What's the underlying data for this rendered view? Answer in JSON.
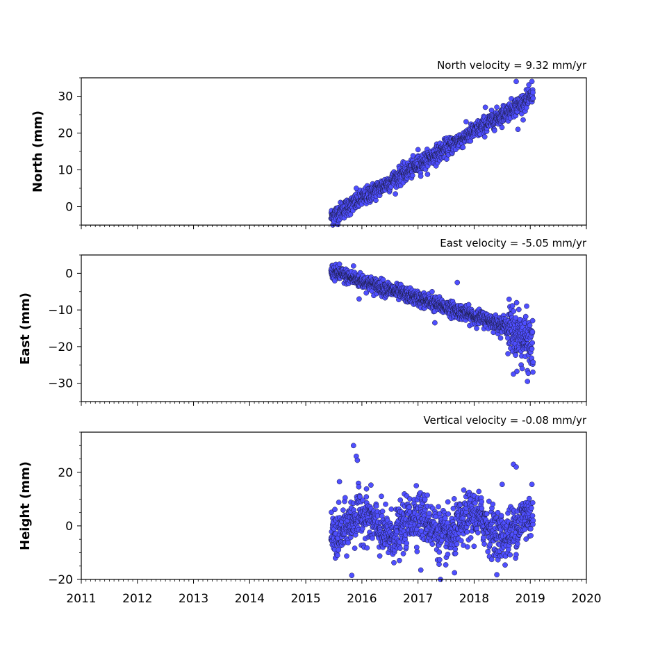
{
  "chart_data": [
    {
      "type": "scatter",
      "title": "North velocity = 9.32 mm/yr",
      "xlabel": "",
      "ylabel": "North (mm)",
      "xlim": [
        2011,
        2020
      ],
      "ylim": [
        -5,
        35
      ],
      "yticks": [
        0,
        10,
        20,
        30
      ],
      "yminor_step": 5,
      "trend": {
        "start": [
          2015.45,
          -2.8
        ],
        "end": [
          2019.05,
          30.0
        ]
      },
      "noise_mm": 1.2,
      "outliers": [
        [
          2018.75,
          34.0
        ],
        [
          2018.78,
          21.0
        ],
        [
          2019.03,
          34.0
        ],
        [
          2015.9,
          5.0
        ],
        [
          2017.0,
          15.5
        ],
        [
          2018.2,
          27.0
        ]
      ],
      "series": [
        {
          "values_note": "",
          "point_color": "#4f4fff"
        }
      ]
    },
    {
      "type": "scatter",
      "title": "East velocity = -5.05 mm/yr",
      "xlabel": "",
      "ylabel": "East (mm)",
      "xlim": [
        2011,
        2020
      ],
      "ylim": [
        -35,
        5
      ],
      "yticks": [
        -30,
        -20,
        -10,
        0
      ],
      "yminor_step": 5,
      "trend": {
        "start": [
          2015.45,
          0.5
        ],
        "end": [
          2018.6,
          -14.5
        ]
      },
      "tail": {
        "start": [
          2018.6,
          -14.5
        ],
        "end": [
          2019.05,
          -20.0
        ],
        "noise_mm": 3.5
      },
      "noise_mm": 1.0,
      "outliers": [
        [
          2015.6,
          2.5
        ],
        [
          2015.85,
          2.0
        ],
        [
          2015.95,
          -7.0
        ],
        [
          2017.7,
          -2.5
        ],
        [
          2017.3,
          -13.5
        ],
        [
          2018.95,
          -29.5
        ],
        [
          2018.7,
          -27.5
        ],
        [
          2017.25,
          -5.0
        ]
      ],
      "series": [
        {
          "values_note": "",
          "point_color": "#4f4fff"
        }
      ]
    },
    {
      "type": "scatter",
      "title": "Vertical velocity = -0.08 mm/yr",
      "xlabel": "",
      "ylabel": "Height (mm)",
      "xlim": [
        2011,
        2020
      ],
      "ylim": [
        -20,
        35
      ],
      "yticks": [
        -20,
        0,
        20
      ],
      "yminor_step": 5,
      "xticks": [
        2011,
        2012,
        2013,
        2014,
        2015,
        2016,
        2017,
        2018,
        2019,
        2020
      ],
      "trend": {
        "start": [
          2015.45,
          0.0
        ],
        "end": [
          2019.05,
          0.0
        ]
      },
      "seasonal_amp_mm": 4.0,
      "noise_mm": 4.5,
      "outliers": [
        [
          2015.85,
          30.0
        ],
        [
          2015.9,
          26.0
        ],
        [
          2015.92,
          24.5
        ],
        [
          2015.6,
          16.5
        ],
        [
          2015.82,
          -18.5
        ],
        [
          2017.4,
          -20.0
        ],
        [
          2018.7,
          23.0
        ],
        [
          2018.75,
          22.0
        ],
        [
          2016.97,
          15.0
        ],
        [
          2018.5,
          15.5
        ],
        [
          2019.03,
          15.5
        ],
        [
          2017.05,
          -16.5
        ],
        [
          2017.65,
          -17.5
        ]
      ],
      "series": [
        {
          "values_note": "",
          "point_color": "#4f4fff"
        }
      ]
    }
  ]
}
